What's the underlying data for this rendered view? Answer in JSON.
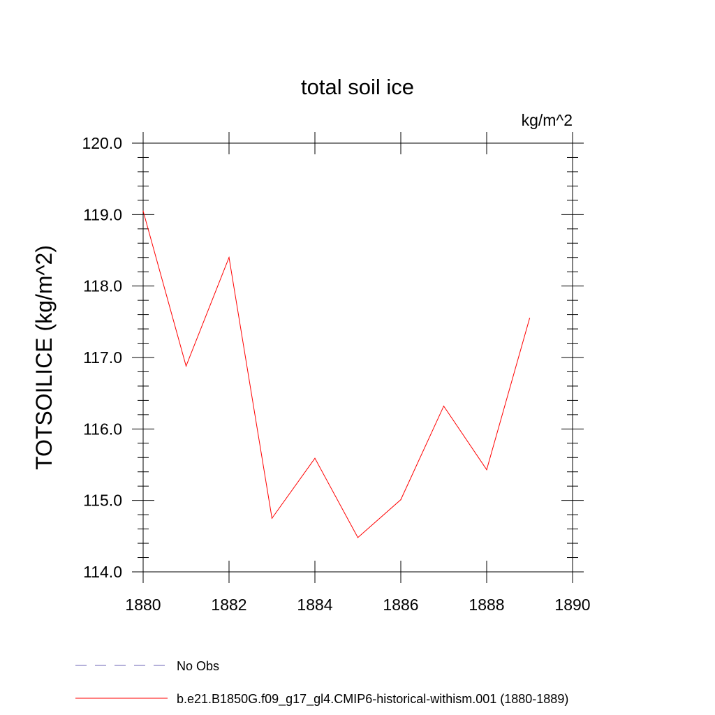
{
  "chart_data": {
    "type": "line",
    "title": "total soil ice",
    "units_label": "kg/m^2",
    "ylabel": "TOTSOILICE  (kg/m^2)",
    "xlabel": "",
    "xlim": [
      1880,
      1890
    ],
    "ylim": [
      114.0,
      120.0
    ],
    "x_ticks": [
      "1880",
      "1882",
      "1884",
      "1886",
      "1888",
      "1890"
    ],
    "y_ticks": [
      "114.0",
      "115.0",
      "116.0",
      "117.0",
      "118.0",
      "119.0",
      "120.0"
    ],
    "grid": false,
    "legend_position": "bottom-left",
    "series": [
      {
        "name": "No Obs",
        "color": "#6b63b5",
        "style": "dashed",
        "x": [],
        "values": []
      },
      {
        "name": "b.e21.B1850G.f09_g17_gl4.CMIP6-historical-withism.001 (1880-1889)",
        "color": "#ff0000",
        "style": "solid",
        "x": [
          1880,
          1881,
          1882,
          1883,
          1884,
          1885,
          1886,
          1887,
          1888,
          1889
        ],
        "values": [
          119.05,
          116.88,
          118.4,
          114.75,
          115.59,
          114.48,
          115.01,
          116.32,
          115.43,
          117.55
        ]
      }
    ]
  }
}
